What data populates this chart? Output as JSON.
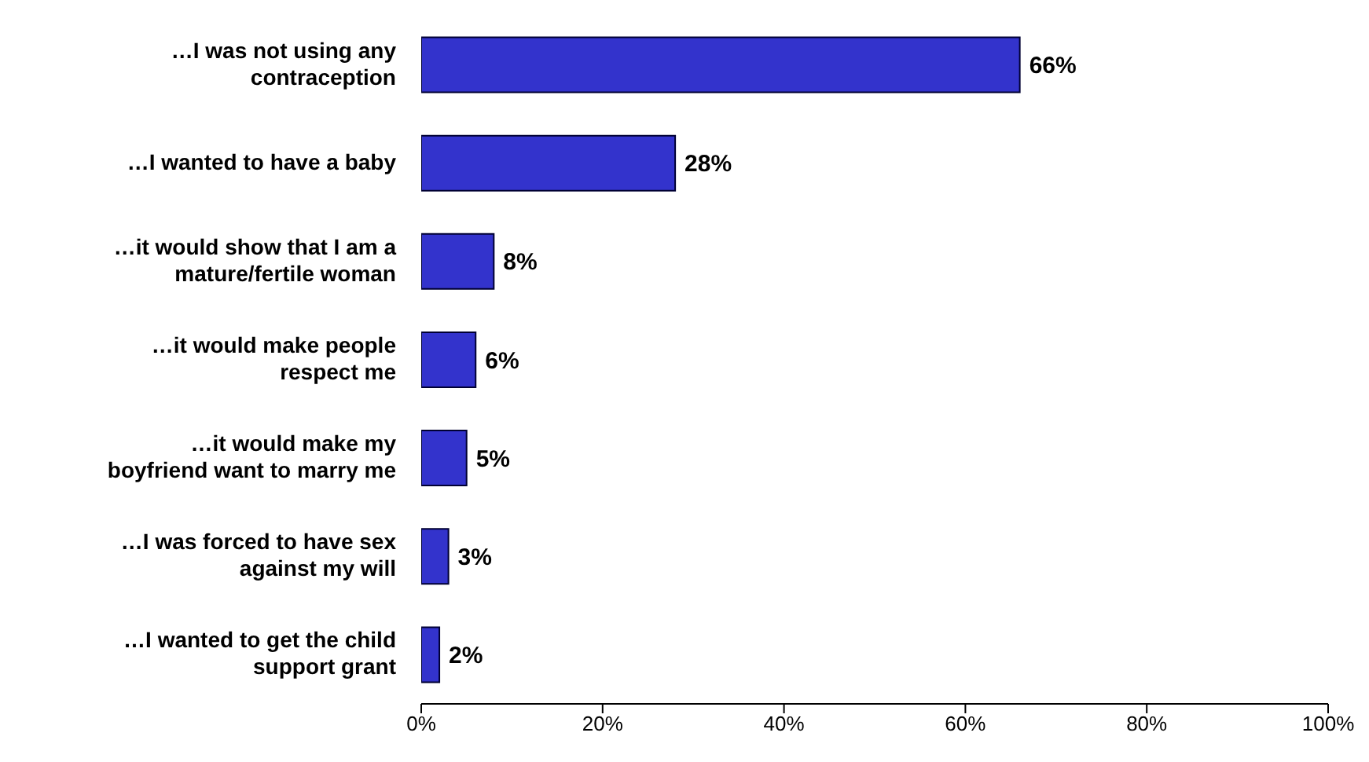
{
  "chart_data": {
    "type": "bar",
    "orientation": "horizontal",
    "categories": [
      "…I was not using any contraception",
      "…I wanted to have a baby",
      "…it would show that I am a mature/fertile woman",
      "…it would make people respect me",
      "…it would make my boyfriend want to marry me",
      "…I was forced to have sex against my will",
      "…I wanted to get the child support grant"
    ],
    "values": [
      66,
      28,
      8,
      6,
      5,
      3,
      2
    ],
    "color": "#3333cc",
    "value_labels": [
      "66%",
      "28%",
      "8%",
      "6%",
      "5%",
      "3%",
      "2%"
    ],
    "xlim": [
      0,
      100
    ],
    "xticks": [
      {
        "value": 0,
        "label": "0%"
      },
      {
        "value": 20,
        "label": "20%"
      },
      {
        "value": 40,
        "label": "40%"
      },
      {
        "value": 60,
        "label": "60%"
      },
      {
        "value": 80,
        "label": "80%"
      },
      {
        "value": 100,
        "label": "100%"
      }
    ],
    "grid": false,
    "legend": false
  }
}
